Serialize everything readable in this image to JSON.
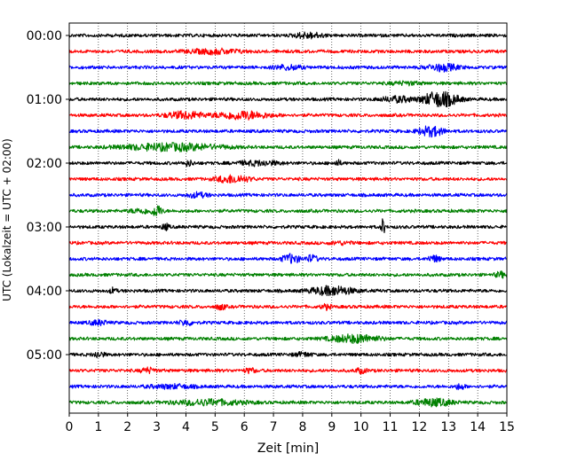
{
  "chart_data": {
    "type": "line",
    "title": "",
    "xlabel": "Zeit  [min]",
    "ylabel": "UTC (Lokalzeit = UTC + 02:00)",
    "xlim": [
      0,
      15
    ],
    "x_ticks": [
      0,
      1,
      2,
      3,
      4,
      5,
      6,
      7,
      8,
      9,
      10,
      11,
      12,
      13,
      14,
      15
    ],
    "y_tick_labels": [
      "00:00",
      "01:00",
      "02:00",
      "03:00",
      "04:00",
      "05:00"
    ],
    "y_tick_rows": [
      0,
      4,
      8,
      12,
      16,
      20
    ],
    "x_grid": "dotted",
    "trace_minutes": 15,
    "trace_colors": [
      "#000000",
      "#ff0000",
      "#0000ff",
      "#008000"
    ],
    "rows": [
      {
        "start": "00:00",
        "color": "#000000",
        "bursts": [
          {
            "t": 8.2,
            "w": 1.2,
            "a": 0.35
          }
        ]
      },
      {
        "start": "00:15",
        "color": "#ff0000",
        "bursts": [
          {
            "t": 5.0,
            "w": 2.4,
            "a": 0.3
          }
        ]
      },
      {
        "start": "00:30",
        "color": "#0000ff",
        "bursts": [
          {
            "t": 7.5,
            "w": 1.2,
            "a": 0.3
          },
          {
            "t": 12.8,
            "w": 1.3,
            "a": 0.45
          }
        ]
      },
      {
        "start": "00:45",
        "color": "#008000",
        "bursts": [
          {
            "t": 11.5,
            "w": 1.5,
            "a": 0.2
          }
        ]
      },
      {
        "start": "01:00",
        "color": "#000000",
        "bursts": [
          {
            "t": 11.3,
            "w": 1.5,
            "a": 0.35
          },
          {
            "t": 12.7,
            "w": 1.4,
            "a": 0.95
          }
        ]
      },
      {
        "start": "01:15",
        "color": "#ff0000",
        "bursts": [
          {
            "t": 4.0,
            "w": 1.6,
            "a": 0.45
          },
          {
            "t": 5.9,
            "w": 2.2,
            "a": 0.5
          }
        ]
      },
      {
        "start": "01:30",
        "color": "#0000ff",
        "bursts": [
          {
            "t": 12.4,
            "w": 1.0,
            "a": 0.6
          }
        ]
      },
      {
        "start": "01:45",
        "color": "#008000",
        "bursts": [
          {
            "t": 3.5,
            "w": 4.0,
            "a": 0.45
          }
        ]
      },
      {
        "start": "02:00",
        "color": "#000000",
        "bursts": [
          {
            "t": 4.1,
            "w": 0.4,
            "a": 0.35
          },
          {
            "t": 6.5,
            "w": 1.8,
            "a": 0.3
          },
          {
            "t": 9.2,
            "w": 0.3,
            "a": 0.35
          }
        ]
      },
      {
        "start": "02:15",
        "color": "#ff0000",
        "bursts": [
          {
            "t": 5.6,
            "w": 1.3,
            "a": 0.5
          }
        ]
      },
      {
        "start": "02:30",
        "color": "#0000ff",
        "bursts": [
          {
            "t": 4.4,
            "w": 0.9,
            "a": 0.3
          }
        ]
      },
      {
        "start": "02:45",
        "color": "#008000",
        "bursts": [
          {
            "t": 2.5,
            "w": 1.0,
            "a": 0.3
          },
          {
            "t": 3.0,
            "w": 0.4,
            "a": 0.75
          }
        ]
      },
      {
        "start": "03:00",
        "color": "#000000",
        "bursts": [
          {
            "t": 3.3,
            "w": 0.3,
            "a": 0.4
          },
          {
            "t": 10.75,
            "w": 0.15,
            "a": 1.0
          }
        ]
      },
      {
        "start": "03:15",
        "color": "#ff0000",
        "bursts": [
          {
            "t": 9.3,
            "w": 1.0,
            "a": 0.2
          }
        ]
      },
      {
        "start": "03:30",
        "color": "#0000ff",
        "bursts": [
          {
            "t": 7.6,
            "w": 0.7,
            "a": 0.55
          },
          {
            "t": 8.3,
            "w": 0.5,
            "a": 0.45
          },
          {
            "t": 12.5,
            "w": 0.5,
            "a": 0.4
          }
        ]
      },
      {
        "start": "03:45",
        "color": "#008000",
        "bursts": [
          {
            "t": 14.8,
            "w": 0.5,
            "a": 0.35
          }
        ]
      },
      {
        "start": "04:00",
        "color": "#000000",
        "bursts": [
          {
            "t": 1.5,
            "w": 0.3,
            "a": 0.35
          },
          {
            "t": 9.0,
            "w": 1.8,
            "a": 0.55
          }
        ]
      },
      {
        "start": "04:15",
        "color": "#ff0000",
        "bursts": [
          {
            "t": 5.2,
            "w": 0.4,
            "a": 0.35
          },
          {
            "t": 8.8,
            "w": 0.4,
            "a": 0.35
          }
        ]
      },
      {
        "start": "04:30",
        "color": "#0000ff",
        "bursts": [
          {
            "t": 1.0,
            "w": 0.8,
            "a": 0.3
          },
          {
            "t": 4.0,
            "w": 0.6,
            "a": 0.35
          }
        ]
      },
      {
        "start": "04:45",
        "color": "#008000",
        "bursts": [
          {
            "t": 9.8,
            "w": 2.0,
            "a": 0.5
          }
        ]
      },
      {
        "start": "05:00",
        "color": "#000000",
        "bursts": [
          {
            "t": 1.0,
            "w": 0.5,
            "a": 0.35
          },
          {
            "t": 8.0,
            "w": 0.8,
            "a": 0.25
          }
        ]
      },
      {
        "start": "05:15",
        "color": "#ff0000",
        "bursts": [
          {
            "t": 2.7,
            "w": 0.6,
            "a": 0.35
          },
          {
            "t": 6.2,
            "w": 0.5,
            "a": 0.3
          },
          {
            "t": 10.0,
            "w": 0.5,
            "a": 0.3
          }
        ]
      },
      {
        "start": "05:30",
        "color": "#0000ff",
        "bursts": [
          {
            "t": 3.5,
            "w": 2.0,
            "a": 0.25
          },
          {
            "t": 13.4,
            "w": 0.4,
            "a": 0.35
          }
        ]
      },
      {
        "start": "05:45",
        "color": "#008000",
        "bursts": [
          {
            "t": 4.8,
            "w": 3.0,
            "a": 0.35
          },
          {
            "t": 12.5,
            "w": 1.5,
            "a": 0.45
          }
        ]
      }
    ]
  }
}
